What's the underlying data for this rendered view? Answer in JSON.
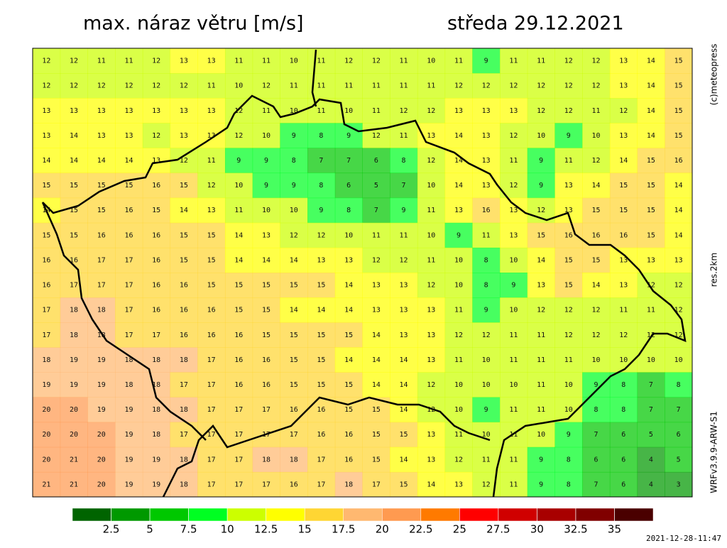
{
  "title": "max. náraz větru [m/s]",
  "date": "středa 29.12.2021",
  "copyright": "(c)meteopress",
  "resolution": "res.2km",
  "model": "WRFv3.9.9-ARW-S1",
  "timestamp": "2021-12-28-11:47",
  "colorbar": {
    "ticks": [
      2.5,
      5,
      7.5,
      10,
      12.5,
      15,
      17.5,
      20,
      22.5,
      25,
      27.5,
      30,
      32.5,
      35
    ],
    "colors": [
      "#006400",
      "#009900",
      "#00c800",
      "#00ff22",
      "#ccff00",
      "#ffff00",
      "#ffd633",
      "#ffb870",
      "#ff9a50",
      "#ff7a00",
      "#ff0000",
      "#d00000",
      "#a80000",
      "#800000",
      "#4a0000"
    ]
  },
  "grid": [
    [
      12,
      12,
      11,
      11,
      12,
      13,
      13,
      11,
      11,
      10,
      11,
      12,
      12,
      11,
      10,
      11,
      9,
      11,
      11,
      12,
      12,
      13,
      14,
      15
    ],
    [
      12,
      12,
      12,
      12,
      12,
      12,
      11,
      10,
      12,
      11,
      11,
      11,
      11,
      11,
      11,
      12,
      12,
      12,
      12,
      12,
      12,
      13,
      14,
      15
    ],
    [
      13,
      13,
      13,
      13,
      13,
      13,
      13,
      12,
      11,
      10,
      11,
      10,
      11,
      12,
      12,
      13,
      13,
      13,
      12,
      12,
      11,
      12,
      14,
      15
    ],
    [
      13,
      14,
      13,
      13,
      12,
      13,
      13,
      12,
      10,
      9,
      8,
      9,
      12,
      11,
      13,
      14,
      13,
      12,
      10,
      9,
      10,
      13,
      14,
      15
    ],
    [
      14,
      14,
      14,
      14,
      13,
      12,
      11,
      9,
      9,
      8,
      7,
      7,
      6,
      8,
      12,
      14,
      13,
      11,
      9,
      11,
      12,
      14,
      15,
      16
    ],
    [
      15,
      15,
      15,
      15,
      16,
      15,
      12,
      10,
      9,
      9,
      8,
      6,
      5,
      7,
      10,
      14,
      13,
      12,
      9,
      13,
      14,
      15,
      15,
      14
    ],
    [
      14,
      15,
      15,
      16,
      15,
      14,
      13,
      11,
      10,
      10,
      9,
      8,
      7,
      9,
      11,
      13,
      16,
      13,
      12,
      13,
      15,
      15,
      15,
      14
    ],
    [
      15,
      15,
      16,
      16,
      16,
      15,
      15,
      14,
      13,
      12,
      12,
      10,
      11,
      11,
      10,
      9,
      11,
      13,
      15,
      16,
      16,
      16,
      15,
      14
    ],
    [
      16,
      16,
      17,
      17,
      16,
      15,
      15,
      14,
      14,
      14,
      13,
      13,
      12,
      12,
      11,
      10,
      8,
      10,
      14,
      15,
      15,
      13,
      13,
      13
    ],
    [
      16,
      17,
      17,
      17,
      16,
      16,
      15,
      15,
      15,
      15,
      15,
      14,
      13,
      13,
      12,
      10,
      8,
      9,
      13,
      15,
      14,
      13,
      12,
      12
    ],
    [
      17,
      18,
      18,
      17,
      16,
      16,
      16,
      15,
      15,
      14,
      14,
      14,
      13,
      13,
      13,
      11,
      9,
      10,
      12,
      12,
      12,
      11,
      11,
      12
    ],
    [
      17,
      18,
      18,
      17,
      17,
      16,
      16,
      16,
      15,
      15,
      15,
      15,
      14,
      13,
      13,
      12,
      12,
      11,
      11,
      12,
      12,
      12,
      12,
      12
    ],
    [
      18,
      19,
      19,
      18,
      18,
      18,
      17,
      16,
      16,
      15,
      15,
      14,
      14,
      14,
      13,
      11,
      10,
      11,
      11,
      11,
      10,
      10,
      10,
      10
    ],
    [
      19,
      19,
      19,
      18,
      18,
      17,
      17,
      16,
      16,
      15,
      15,
      15,
      14,
      14,
      12,
      10,
      10,
      10,
      11,
      10,
      9,
      8,
      7,
      8
    ],
    [
      20,
      20,
      19,
      19,
      18,
      18,
      17,
      17,
      17,
      16,
      16,
      15,
      15,
      14,
      12,
      10,
      9,
      11,
      11,
      10,
      8,
      8,
      7,
      7
    ],
    [
      20,
      20,
      20,
      19,
      18,
      17,
      17,
      17,
      17,
      17,
      16,
      16,
      15,
      15,
      13,
      11,
      10,
      11,
      10,
      9,
      7,
      6,
      5,
      6
    ],
    [
      20,
      21,
      20,
      19,
      19,
      18,
      17,
      17,
      18,
      18,
      17,
      16,
      15,
      14,
      13,
      12,
      11,
      11,
      9,
      8,
      6,
      6,
      4,
      5
    ],
    [
      21,
      21,
      20,
      19,
      19,
      18,
      17,
      17,
      17,
      16,
      17,
      18,
      17,
      15,
      14,
      13,
      12,
      11,
      9,
      8,
      7,
      6,
      4,
      3
    ]
  ]
}
